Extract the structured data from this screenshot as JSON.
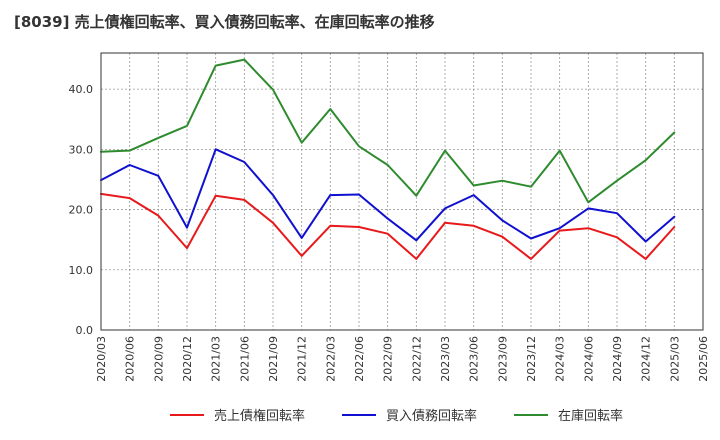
{
  "chart_data": {
    "type": "line",
    "title": "[8039]  売上債権回転率、買入債務回転率、在庫回転率の推移",
    "xlabel": "",
    "ylabel": "",
    "ylim": [
      0,
      46
    ],
    "yticks": [
      0,
      10,
      20,
      30,
      40
    ],
    "ytick_labels": [
      "0.0",
      "10.0",
      "20.0",
      "30.0",
      "40.0"
    ],
    "x_categories": [
      "2020/03",
      "2020/06",
      "2020/09",
      "2020/12",
      "2021/03",
      "2021/06",
      "2021/09",
      "2021/12",
      "2022/03",
      "2022/06",
      "2022/09",
      "2022/12",
      "2023/03",
      "2023/06",
      "2023/09",
      "2023/12",
      "2024/03",
      "2024/06",
      "2024/09",
      "2024/12",
      "2025/03",
      "2025/06"
    ],
    "grid": true,
    "legend_position": "bottom",
    "series": [
      {
        "name": "売上債権回転率",
        "color": "#e8191b",
        "values": [
          22.6,
          21.9,
          19.0,
          13.6,
          22.3,
          21.6,
          17.8,
          12.3,
          17.3,
          17.1,
          16.0,
          11.8,
          17.8,
          17.3,
          15.5,
          11.8,
          16.5,
          16.9,
          15.4,
          11.8,
          17.1
        ]
      },
      {
        "name": "買入債務回転率",
        "color": "#1010d0",
        "values": [
          24.9,
          27.4,
          25.6,
          17.0,
          30.0,
          27.9,
          22.4,
          15.3,
          22.4,
          22.5,
          18.5,
          14.9,
          20.2,
          22.4,
          18.2,
          15.2,
          16.9,
          20.2,
          19.4,
          14.7,
          18.8
        ]
      },
      {
        "name": "在庫回転率",
        "color": "#2e8b2e",
        "values": [
          29.6,
          29.8,
          31.9,
          33.9,
          43.9,
          44.9,
          39.9,
          31.1,
          36.7,
          30.5,
          27.4,
          22.3,
          29.8,
          24.0,
          24.8,
          23.8,
          29.8,
          21.2,
          24.8,
          28.2,
          32.8
        ]
      }
    ]
  }
}
